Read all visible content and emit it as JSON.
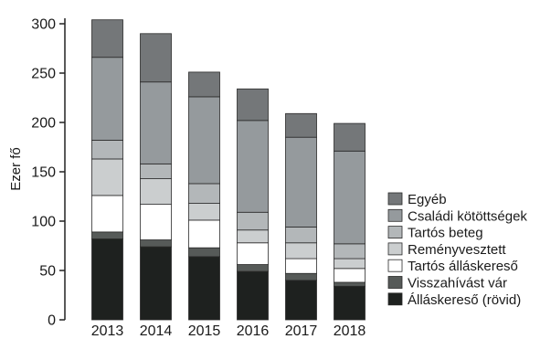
{
  "chart_data": {
    "type": "bar",
    "stacked": true,
    "title": "",
    "xlabel": "",
    "ylabel": "Ezer fő",
    "ylim": [
      0,
      320
    ],
    "yticks": [
      0,
      50,
      100,
      150,
      200,
      250,
      300
    ],
    "grid": false,
    "legend_position": "right",
    "categories": [
      "2013",
      "2014",
      "2015",
      "2016",
      "2017",
      "2018"
    ],
    "series": [
      {
        "name": "Álláskereső (rövid)",
        "color": "#1e211f",
        "values": [
          82,
          74,
          64,
          49,
          40,
          34
        ]
      },
      {
        "name": "Visszahívást vár",
        "color": "#565a58",
        "values": [
          7,
          7,
          9,
          7,
          7,
          4
        ]
      },
      {
        "name": "Tartós álláskereső",
        "color": "#ffffff",
        "values": [
          37,
          36,
          28,
          22,
          15,
          14
        ]
      },
      {
        "name": "Reményvesztett",
        "color": "#cbcecf",
        "values": [
          37,
          26,
          17,
          13,
          16,
          10
        ]
      },
      {
        "name": "Tartós beteg",
        "color": "#b3b7b9",
        "values": [
          19,
          15,
          20,
          18,
          16,
          15
        ]
      },
      {
        "name": "Családi kötöttségek",
        "color": "#959a9d",
        "values": [
          84,
          83,
          88,
          93,
          91,
          94
        ]
      },
      {
        "name": "Egyéb",
        "color": "#747779",
        "values": [
          38,
          49,
          25,
          32,
          24,
          28
        ]
      }
    ]
  }
}
